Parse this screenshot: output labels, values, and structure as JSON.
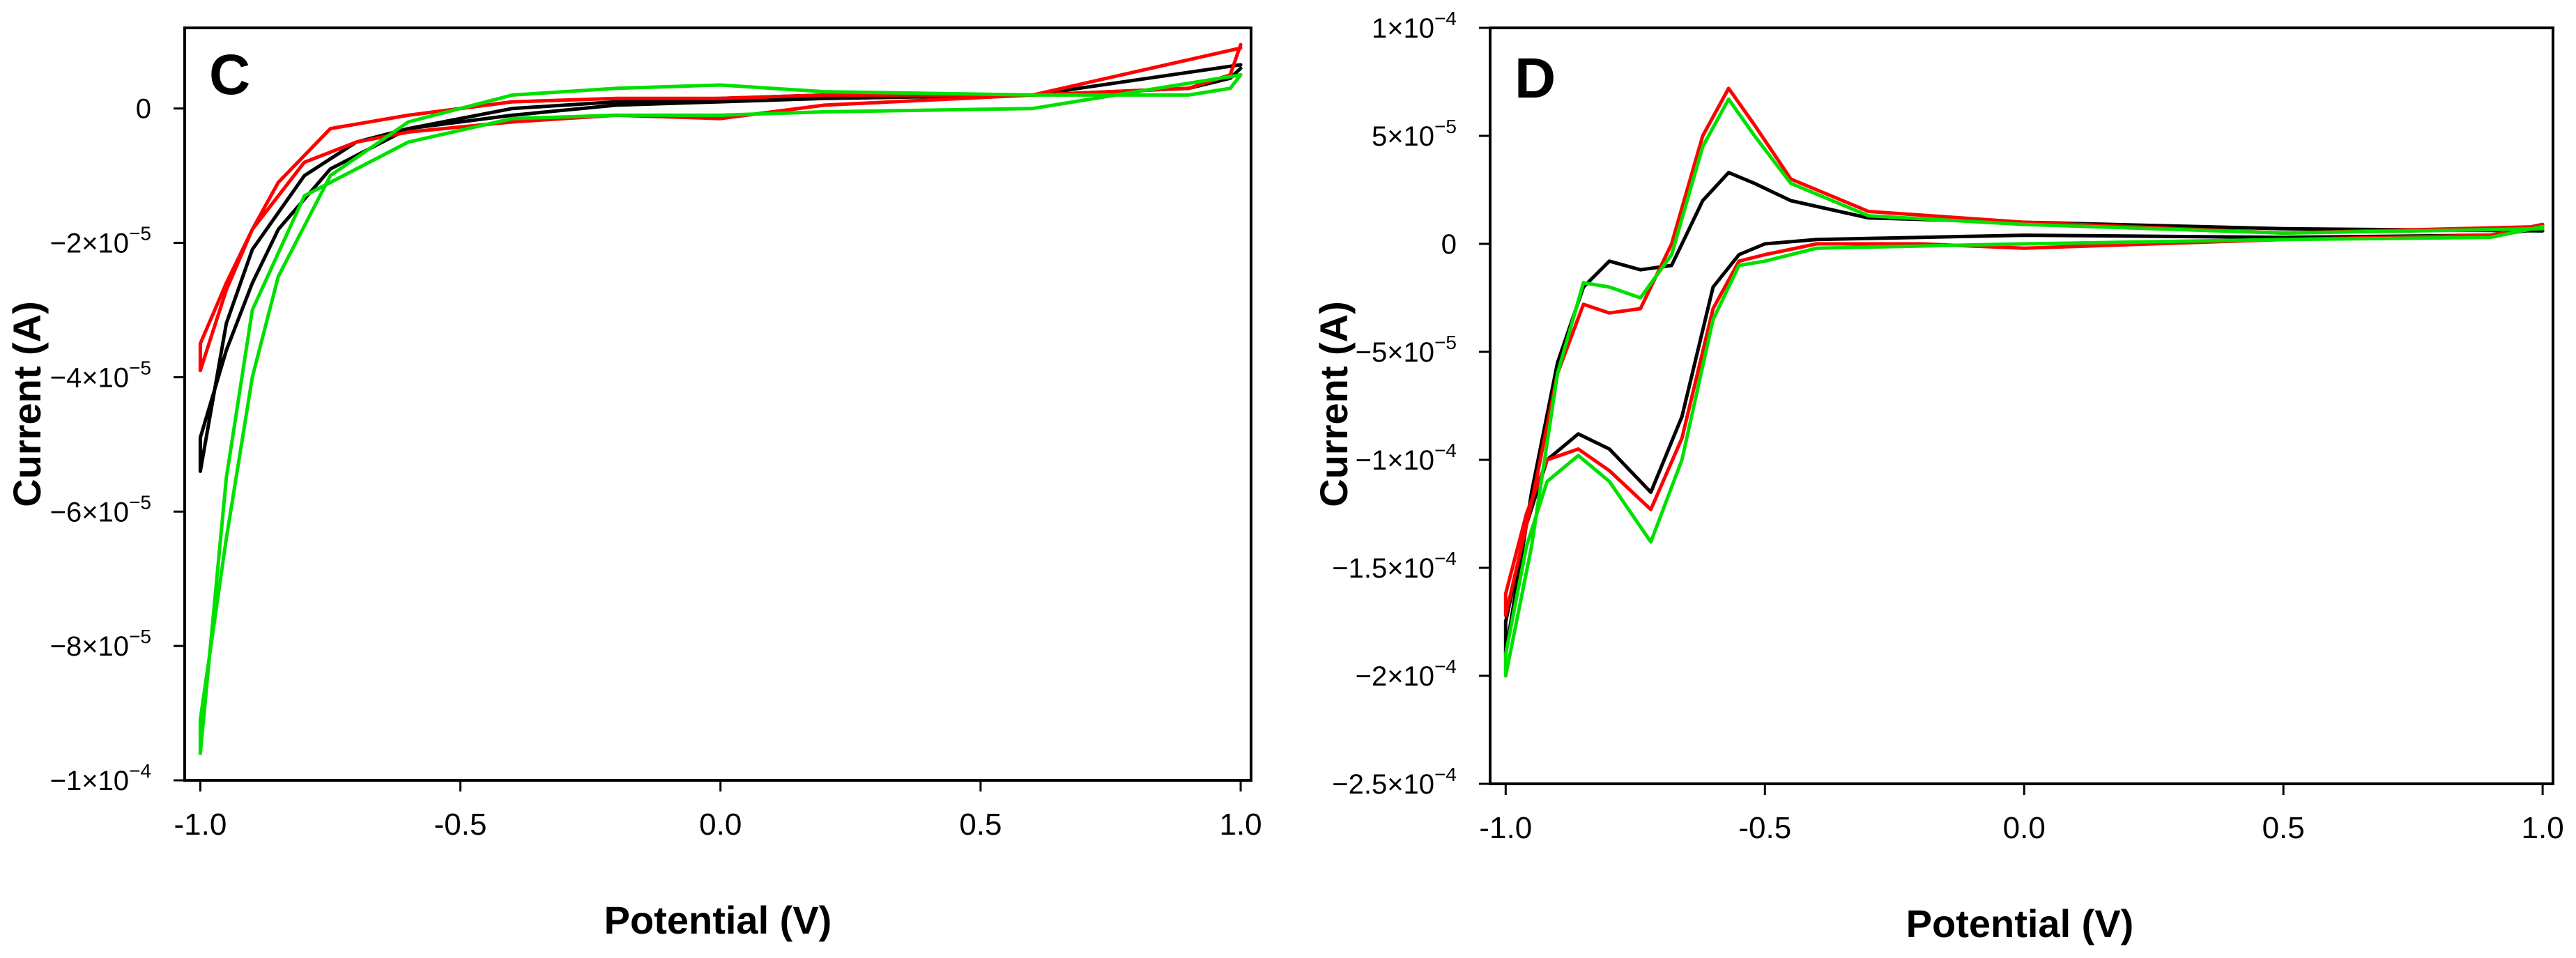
{
  "chart_data": [
    {
      "type": "line",
      "panel_label": "C",
      "xlabel": "Potential (V)",
      "ylabel": "Current (A)",
      "xlim": [
        -1.03,
        1.02
      ],
      "ylim": [
        -0.0001,
        1.2e-05
      ],
      "xticks": [
        {
          "value": -1.0,
          "label": "-1.0"
        },
        {
          "value": -0.5,
          "label": "-0.5"
        },
        {
          "value": 0.0,
          "label": "0.0"
        },
        {
          "value": 0.5,
          "label": "0.5"
        },
        {
          "value": 1.0,
          "label": "1.0"
        }
      ],
      "yticks": [
        {
          "value": 0,
          "label": "0",
          "mantissa": "",
          "exponent": ""
        },
        {
          "value": -2e-05,
          "label": "−2×10−5",
          "mantissa": "−2×10",
          "exponent": "−5"
        },
        {
          "value": -4e-05,
          "label": "−4×10−5",
          "mantissa": "−4×10",
          "exponent": "−5"
        },
        {
          "value": -6e-05,
          "label": "−6×10−5",
          "mantissa": "−6×10",
          "exponent": "−5"
        },
        {
          "value": -8e-05,
          "label": "−8×10−5",
          "mantissa": "−8×10",
          "exponent": "−5"
        },
        {
          "value": -0.0001,
          "label": "−1×10−4",
          "mantissa": "−1×10",
          "exponent": "−4"
        }
      ],
      "grid": false,
      "legend": "none",
      "series": [
        {
          "name": "black",
          "color": "#000000",
          "x": [
            1.0,
            0.6,
            0.2,
            0.0,
            -0.2,
            -0.4,
            -0.6,
            -0.7,
            -0.8,
            -0.9,
            -0.95,
            -1.0,
            -1.0,
            -0.95,
            -0.9,
            -0.85,
            -0.75,
            -0.6,
            -0.4,
            -0.2,
            0.0,
            0.2,
            0.6,
            0.9,
            0.98,
            1.0
          ],
          "y": [
            6.5e-06,
            2e-06,
            1.5e-06,
            1e-06,
            5e-07,
            -1e-06,
            -3e-06,
            -5e-06,
            -1e-05,
            -2.1e-05,
            -3.2e-05,
            -5.4e-05,
            -4.9e-05,
            -3.6e-05,
            -2.6e-05,
            -1.8e-05,
            -9e-06,
            -3e-06,
            0.0,
            1e-06,
            1.5e-06,
            2e-06,
            2e-06,
            3e-06,
            4.5e-06,
            6e-06
          ]
        },
        {
          "name": "red",
          "color": "#ff0000",
          "x": [
            1.0,
            0.6,
            0.2,
            0.0,
            -0.2,
            -0.4,
            -0.6,
            -0.7,
            -0.8,
            -0.9,
            -0.95,
            -1.0,
            -1.0,
            -0.95,
            -0.9,
            -0.85,
            -0.75,
            -0.6,
            -0.4,
            -0.2,
            0.0,
            0.2,
            0.6,
            0.9,
            0.98,
            1.0
          ],
          "y": [
            9e-06,
            2e-06,
            5e-07,
            -1.5e-06,
            -1e-06,
            -2e-06,
            -3.5e-06,
            -5e-06,
            -8e-06,
            -1.8e-05,
            -2.7e-05,
            -3.9e-05,
            -3.5e-05,
            -2.6e-05,
            -1.8e-05,
            -1.1e-05,
            -3e-06,
            -1e-06,
            1e-06,
            1.5e-06,
            1.5e-06,
            2e-06,
            2e-06,
            3e-06,
            5e-06,
            9.5e-06
          ]
        },
        {
          "name": "green",
          "color": "#00e000",
          "x": [
            1.0,
            0.6,
            0.2,
            0.0,
            -0.2,
            -0.4,
            -0.6,
            -0.7,
            -0.8,
            -0.9,
            -0.95,
            -1.0,
            -1.0,
            -0.95,
            -0.9,
            -0.85,
            -0.75,
            -0.6,
            -0.4,
            -0.2,
            0.0,
            0.2,
            0.6,
            0.9,
            0.98,
            1.0
          ],
          "y": [
            5e-06,
            0.0,
            -5e-07,
            -1e-06,
            -1e-06,
            -1.5e-06,
            -5e-06,
            -9e-06,
            -1.3e-05,
            -3e-05,
            -5.5e-05,
            -9.6e-05,
            -9.1e-05,
            -6.4e-05,
            -4e-05,
            -2.5e-05,
            -1e-05,
            -2e-06,
            2e-06,
            3e-06,
            3.5e-06,
            2.5e-06,
            2e-06,
            2e-06,
            3e-06,
            5e-06
          ]
        }
      ]
    },
    {
      "type": "line",
      "panel_label": "D",
      "xlabel": "Potential (V)",
      "ylabel": "Current (A)",
      "xlim": [
        -1.03,
        1.02
      ],
      "ylim": [
        -0.00025,
        0.0001
      ],
      "xticks": [
        {
          "value": -1.0,
          "label": "-1.0"
        },
        {
          "value": -0.5,
          "label": "-0.5"
        },
        {
          "value": 0.0,
          "label": "0.0"
        },
        {
          "value": 0.5,
          "label": "0.5"
        },
        {
          "value": 1.0,
          "label": "1.0"
        }
      ],
      "yticks": [
        {
          "value": 0.0001,
          "label": "1×10−4",
          "mantissa": "1×10",
          "exponent": "−4"
        },
        {
          "value": 5e-05,
          "label": "5×10−5",
          "mantissa": "5×10",
          "exponent": "−5"
        },
        {
          "value": 0,
          "label": "0",
          "mantissa": "",
          "exponent": ""
        },
        {
          "value": -5e-05,
          "label": "−5×10−5",
          "mantissa": "−5×10",
          "exponent": "−5"
        },
        {
          "value": -0.0001,
          "label": "−1×10−4",
          "mantissa": "−1×10",
          "exponent": "−4"
        },
        {
          "value": -0.00015,
          "label": "−1.5×10−4",
          "mantissa": "−1.5×10",
          "exponent": "−4"
        },
        {
          "value": -0.0002,
          "label": "−2×10−4",
          "mantissa": "−2×10",
          "exponent": "−4"
        },
        {
          "value": -0.00025,
          "label": "−2.5×10−4",
          "mantissa": "−2.5×10",
          "exponent": "−4"
        }
      ],
      "grid": false,
      "legend": "none",
      "series": [
        {
          "name": "black",
          "color": "#000000",
          "x": [
            1.0,
            0.5,
            0.0,
            -0.3,
            -0.45,
            -0.52,
            -0.57,
            -0.62,
            -0.68,
            -0.74,
            -0.8,
            -0.85,
            -0.9,
            -0.95,
            -1.0,
            -1.0,
            -0.96,
            -0.92,
            -0.86,
            -0.8,
            -0.72,
            -0.66,
            -0.6,
            -0.55,
            -0.5,
            -0.4,
            -0.2,
            0.0,
            0.5,
            0.9,
            1.0
          ],
          "y": [
            6e-06,
            7e-06,
            1e-05,
            1.2e-05,
            2e-05,
            2.8e-05,
            3.3e-05,
            2e-05,
            -1e-05,
            -1.2e-05,
            -8e-06,
            -2e-05,
            -5.5e-05,
            -0.000115,
            -0.00019,
            -0.000175,
            -0.00013,
            -0.0001,
            -8.8e-05,
            -9.5e-05,
            -0.000115,
            -8e-05,
            -2e-05,
            -5e-06,
            0.0,
            2e-06,
            3e-06,
            4e-06,
            3e-06,
            4e-06,
            7e-06
          ]
        },
        {
          "name": "red",
          "color": "#ff0000",
          "x": [
            1.0,
            0.5,
            0.0,
            -0.3,
            -0.45,
            -0.52,
            -0.57,
            -0.62,
            -0.68,
            -0.74,
            -0.8,
            -0.85,
            -0.9,
            -0.95,
            -1.0,
            -1.0,
            -0.96,
            -0.92,
            -0.86,
            -0.8,
            -0.72,
            -0.66,
            -0.6,
            -0.55,
            -0.5,
            -0.4,
            -0.2,
            0.0,
            0.5,
            0.9,
            1.0
          ],
          "y": [
            8e-06,
            5e-06,
            1e-05,
            1.5e-05,
            3e-05,
            5.5e-05,
            7.2e-05,
            5e-05,
            0.0,
            -3e-05,
            -3.2e-05,
            -2.8e-05,
            -6e-05,
            -0.00012,
            -0.000172,
            -0.000162,
            -0.000125,
            -0.0001,
            -9.5e-05,
            -0.000105,
            -0.000123,
            -9e-05,
            -3e-05,
            -8e-06,
            -5e-06,
            0.0,
            0.0,
            -2e-06,
            2e-06,
            4e-06,
            9e-06
          ]
        },
        {
          "name": "green",
          "color": "#00e000",
          "x": [
            1.0,
            0.5,
            0.0,
            -0.3,
            -0.45,
            -0.52,
            -0.57,
            -0.62,
            -0.68,
            -0.74,
            -0.8,
            -0.85,
            -0.9,
            -0.95,
            -1.0,
            -1.0,
            -0.96,
            -0.92,
            -0.86,
            -0.8,
            -0.72,
            -0.66,
            -0.6,
            -0.55,
            -0.5,
            -0.4,
            -0.2,
            0.0,
            0.5,
            0.9,
            1.0
          ],
          "y": [
            7e-06,
            5e-06,
            9e-06,
            1.3e-05,
            2.8e-05,
            5e-05,
            6.7e-05,
            4.5e-05,
            -5e-06,
            -2.5e-05,
            -2e-05,
            -1.8e-05,
            -6e-05,
            -0.00014,
            -0.0002,
            -0.00019,
            -0.00014,
            -0.00011,
            -9.8e-05,
            -0.00011,
            -0.000138,
            -0.0001,
            -3.5e-05,
            -1e-05,
            -8e-06,
            -2e-06,
            -1e-06,
            0.0,
            2e-06,
            3e-06,
            8e-06
          ]
        }
      ]
    }
  ]
}
